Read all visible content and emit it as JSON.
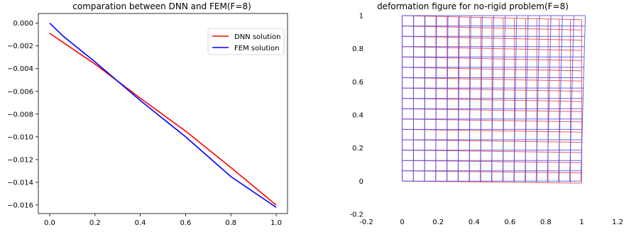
{
  "chart_data": [
    {
      "type": "line",
      "title": "comparation between DNN and FEM(F=8)",
      "xlim": [
        -0.05,
        1.05
      ],
      "ylim": [
        -0.01675,
        0.00085
      ],
      "x_ticks": [
        0.0,
        0.2,
        0.4,
        0.6,
        0.8,
        1.0
      ],
      "x_tick_labels": [
        "0.0",
        "0.2",
        "0.4",
        "0.6",
        "0.8",
        "1.0"
      ],
      "y_ticks": [
        0.0,
        -0.002,
        -0.004,
        -0.006,
        -0.008,
        -0.01,
        -0.012,
        -0.014,
        -0.016
      ],
      "y_tick_labels": [
        "0.000",
        "−0.002",
        "−0.004",
        "−0.006",
        "−0.008",
        "−0.010",
        "−0.012",
        "−0.014",
        "−0.016"
      ],
      "legend": "top-right",
      "grid": false,
      "series": [
        {
          "name": "DNN solution",
          "color": "#ff0000",
          "x": [
            0.0,
            0.2,
            0.4,
            0.6,
            0.8,
            1.0
          ],
          "y": [
            -0.0009,
            -0.0036,
            -0.0066,
            -0.0095,
            -0.0127,
            -0.016
          ]
        },
        {
          "name": "FEM solution",
          "color": "#0000ff",
          "x": [
            0.0,
            0.0625,
            0.2,
            0.4,
            0.6,
            0.8,
            1.0
          ],
          "y": [
            0.0,
            -0.0012,
            -0.0034,
            -0.0068,
            -0.01,
            -0.0135,
            -0.0162
          ]
        }
      ]
    },
    {
      "type": "line",
      "title": "deformation figure for no-rigid problem(F=8)",
      "xlim": [
        -0.2,
        1.2
      ],
      "ylim": [
        -0.2,
        1.0
      ],
      "x_ticks": [
        -0.2,
        0,
        0.2,
        0.4,
        0.6,
        0.8,
        1,
        1.2
      ],
      "x_tick_labels": [
        "-0.2",
        "0",
        "0.2",
        "0.4",
        "0.6",
        "0.8",
        "1",
        "1.2"
      ],
      "y_ticks": [
        -0.2,
        0,
        0.2,
        0.4,
        0.6,
        0.8,
        1
      ],
      "y_tick_labels": [
        "-0.2",
        "0",
        "0.2",
        "0.4",
        "0.6",
        "0.8",
        "1"
      ],
      "grid": false,
      "mesh": {
        "divisions": 16,
        "series": [
          {
            "color": "#e8404e",
            "corners": {
              "bottom_left": [
                0.0,
                0.0
              ],
              "bottom_right": [
                1.0,
                -0.012
              ],
              "top_left": [
                0.0,
                1.0
              ],
              "top_right": [
                1.0,
                0.975
              ]
            }
          },
          {
            "color": "#4a4af0",
            "corners": {
              "bottom_left": [
                0.0,
                0.0
              ],
              "bottom_right": [
                0.995,
                0.0
              ],
              "top_left": [
                0.0,
                1.0
              ],
              "top_right": [
                1.02,
                1.0
              ]
            }
          }
        ]
      }
    }
  ]
}
